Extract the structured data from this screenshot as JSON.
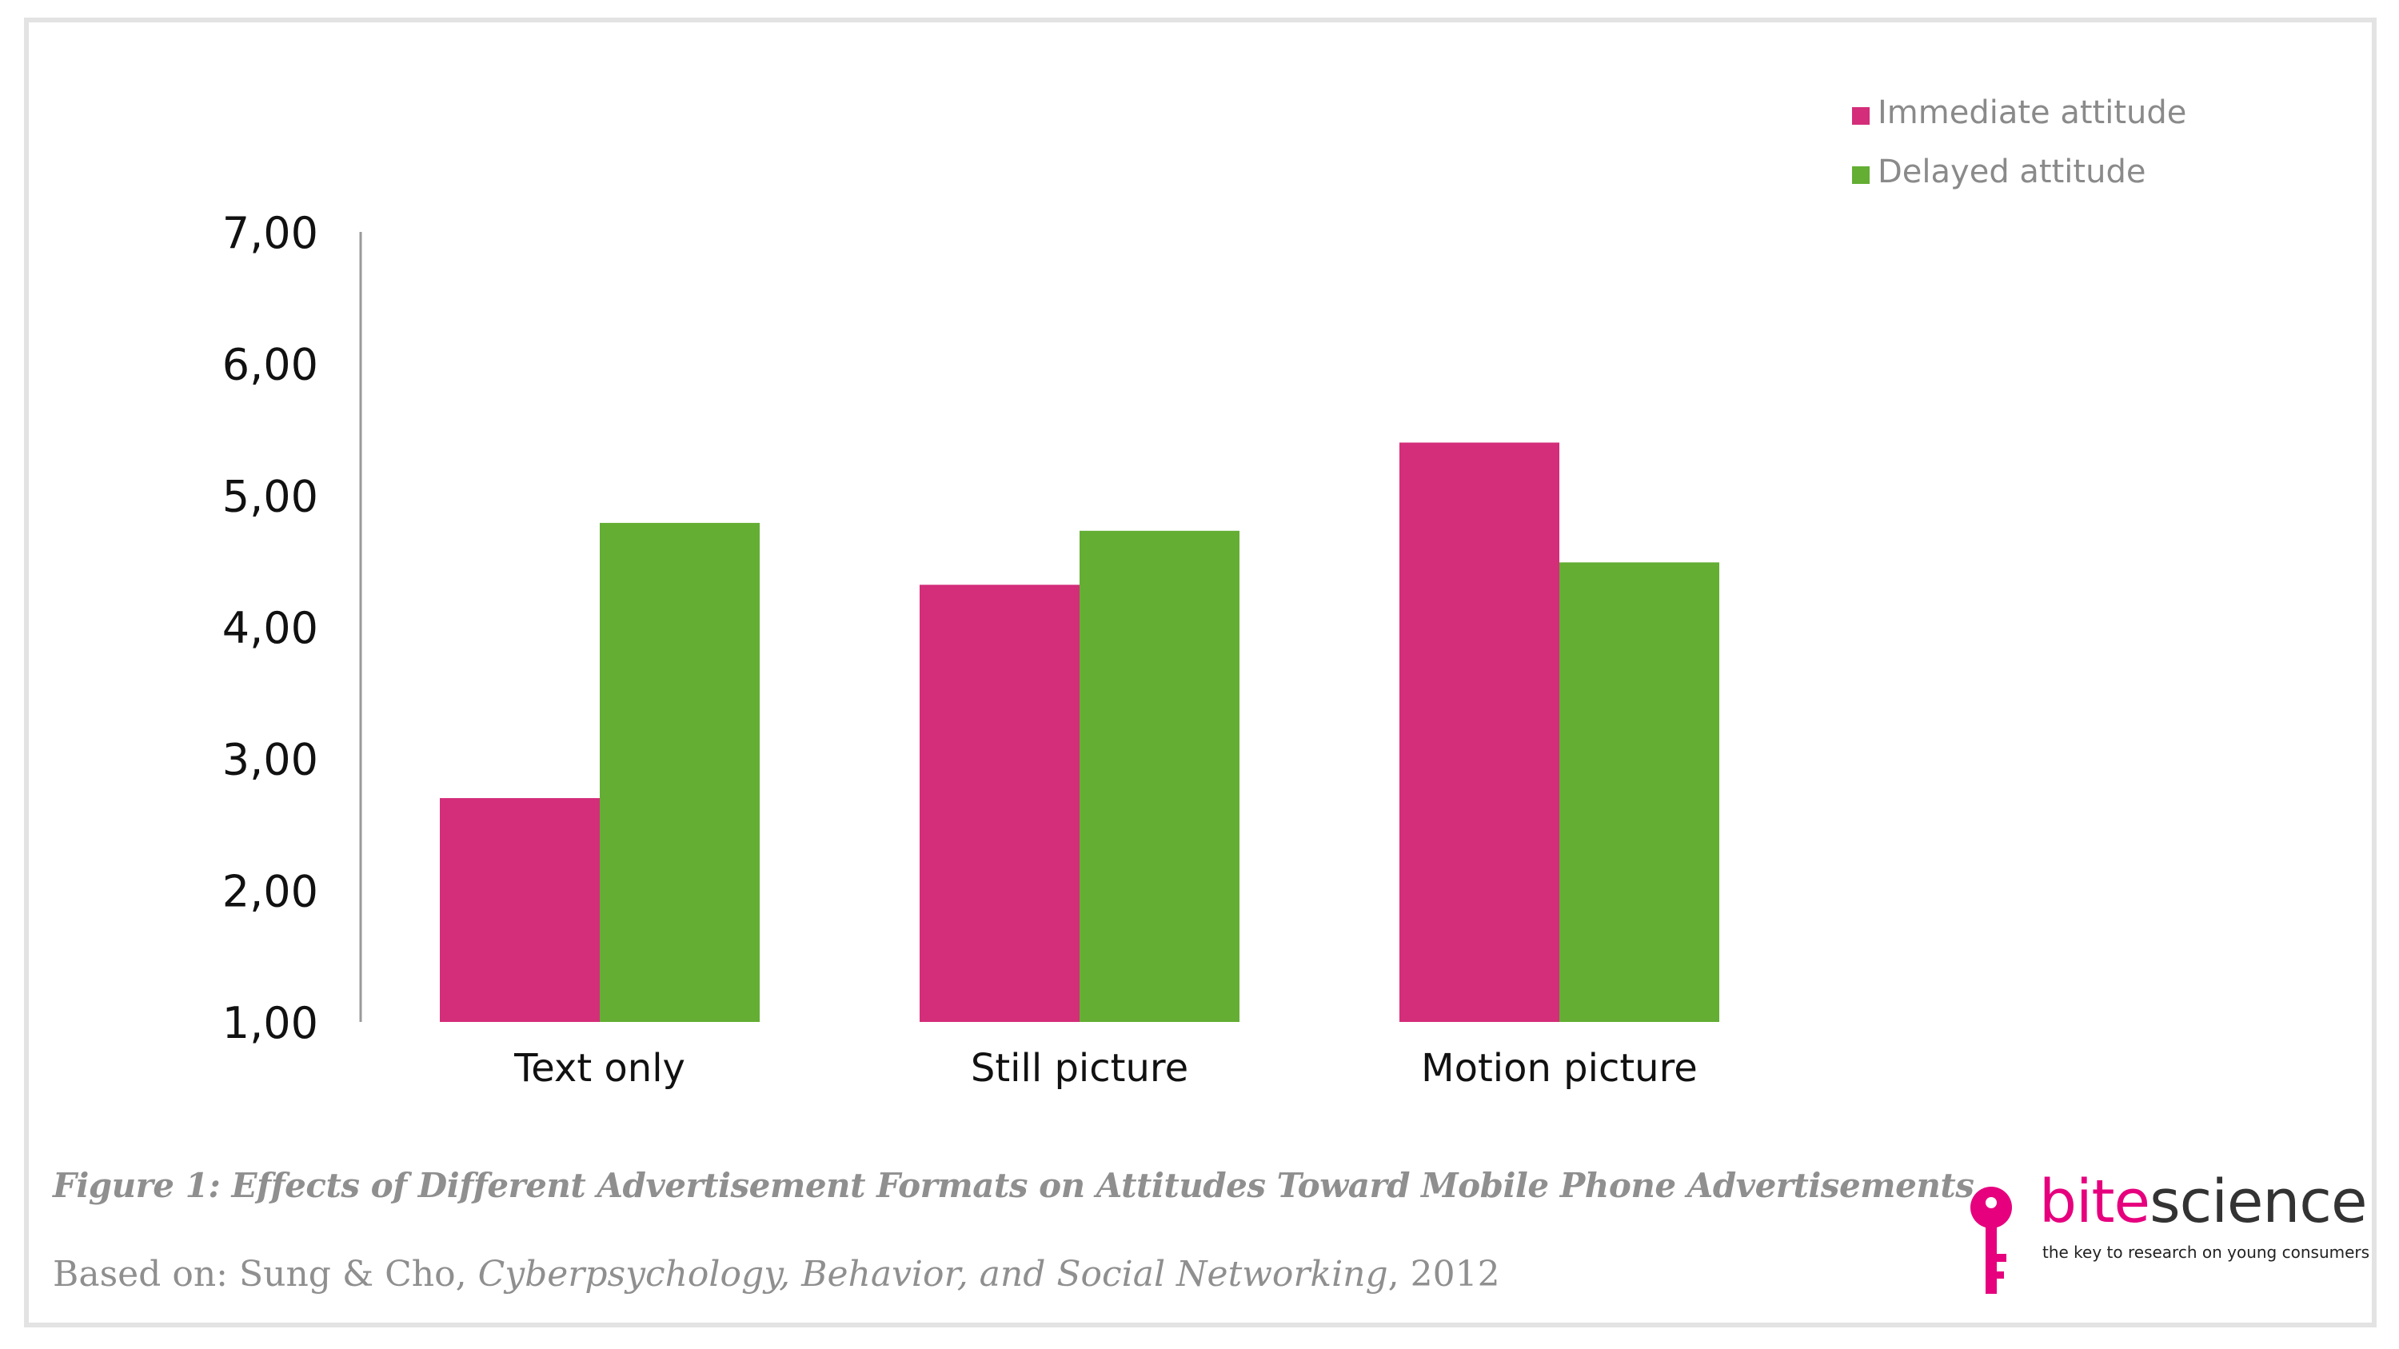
{
  "chart_data": {
    "type": "bar",
    "categories": [
      "Text only",
      "Still picture",
      "Motion picture"
    ],
    "series": [
      {
        "name": "Immediate attitude",
        "color": "#d42d7a",
        "values": [
          2.7,
          4.32,
          5.4
        ]
      },
      {
        "name": "Delayed attitude",
        "color": "#63ae33",
        "values": [
          4.79,
          4.73,
          4.49
        ]
      }
    ],
    "yticks": [
      "1,00",
      "2,00",
      "3,00",
      "4,00",
      "5,00",
      "6,00",
      "7,00"
    ],
    "ylim": [
      1,
      7
    ],
    "grid": false,
    "legend_position": "top-right"
  },
  "caption": "Figure 1: Effects of Different Advertisement Formats on Attitudes Toward Mobile Phone Advertisements",
  "source": {
    "prefix": "Based on: Sung & Cho, ",
    "journal": "Cyberpsychology, Behavior, and Social Networking",
    "suffix": ", 2012"
  },
  "logo": {
    "word_pink": "bite",
    "word_dark": "science",
    "tagline": "the key to research on young consumers",
    "icon": "key-icon",
    "color": "#e6007e"
  }
}
